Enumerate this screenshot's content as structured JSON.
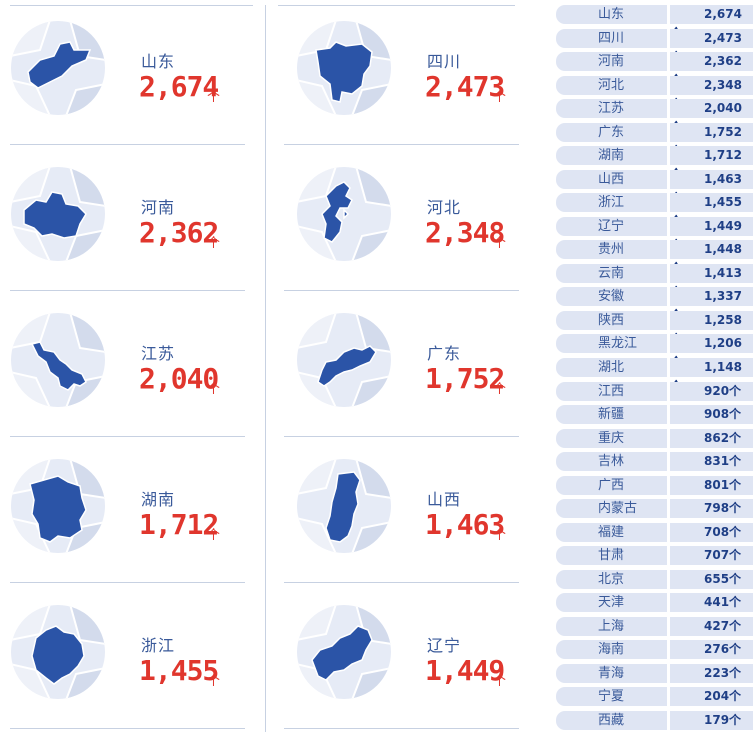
{
  "unit": "个",
  "colors": {
    "highlight": "#2b54a7",
    "value_red": "#e0362d",
    "disc": "#e6ebf6",
    "row_bg": "#dfe5f3"
  },
  "cards": [
    {
      "name": "山东",
      "value": "2,674"
    },
    {
      "name": "四川",
      "value": "2,473"
    },
    {
      "name": "河南",
      "value": "2,362"
    },
    {
      "name": "河北",
      "value": "2,348"
    },
    {
      "name": "江苏",
      "value": "2,040"
    },
    {
      "name": "广东",
      "value": "1,752"
    },
    {
      "name": "湖南",
      "value": "1,712"
    },
    {
      "name": "山西",
      "value": "1,463"
    },
    {
      "name": "浙江",
      "value": "1,455"
    },
    {
      "name": "辽宁",
      "value": "1,449"
    }
  ],
  "chart_data": {
    "type": "table",
    "columns": [
      "province",
      "count"
    ],
    "unit": "个",
    "rows": [
      [
        "山东",
        "2,674个"
      ],
      [
        "四川",
        "2,473个"
      ],
      [
        "河南",
        "2,362个"
      ],
      [
        "河北",
        "2,348个"
      ],
      [
        "江苏",
        "2,040个"
      ],
      [
        "广东",
        "1,752个"
      ],
      [
        "湖南",
        "1,712个"
      ],
      [
        "山西",
        "1,463个"
      ],
      [
        "浙江",
        "1,455个"
      ],
      [
        "辽宁",
        "1,449个"
      ],
      [
        "贵州",
        "1,448个"
      ],
      [
        "云南",
        "1,413个"
      ],
      [
        "安徽",
        "1,337个"
      ],
      [
        "陕西",
        "1,258个"
      ],
      [
        "黑龙江",
        "1,206个"
      ],
      [
        "湖北",
        "1,148个"
      ],
      [
        "江西",
        "920个"
      ],
      [
        "新疆",
        "908个"
      ],
      [
        "重庆",
        "862个"
      ],
      [
        "吉林",
        "831个"
      ],
      [
        "广西",
        "801个"
      ],
      [
        "内蒙古",
        "798个"
      ],
      [
        "福建",
        "708个"
      ],
      [
        "甘肃",
        "707个"
      ],
      [
        "北京",
        "655个"
      ],
      [
        "天津",
        "441个"
      ],
      [
        "上海",
        "427个"
      ],
      [
        "海南",
        "276个"
      ],
      [
        "青海",
        "223个"
      ],
      [
        "宁夏",
        "204个"
      ],
      [
        "西藏",
        "179个"
      ]
    ]
  }
}
